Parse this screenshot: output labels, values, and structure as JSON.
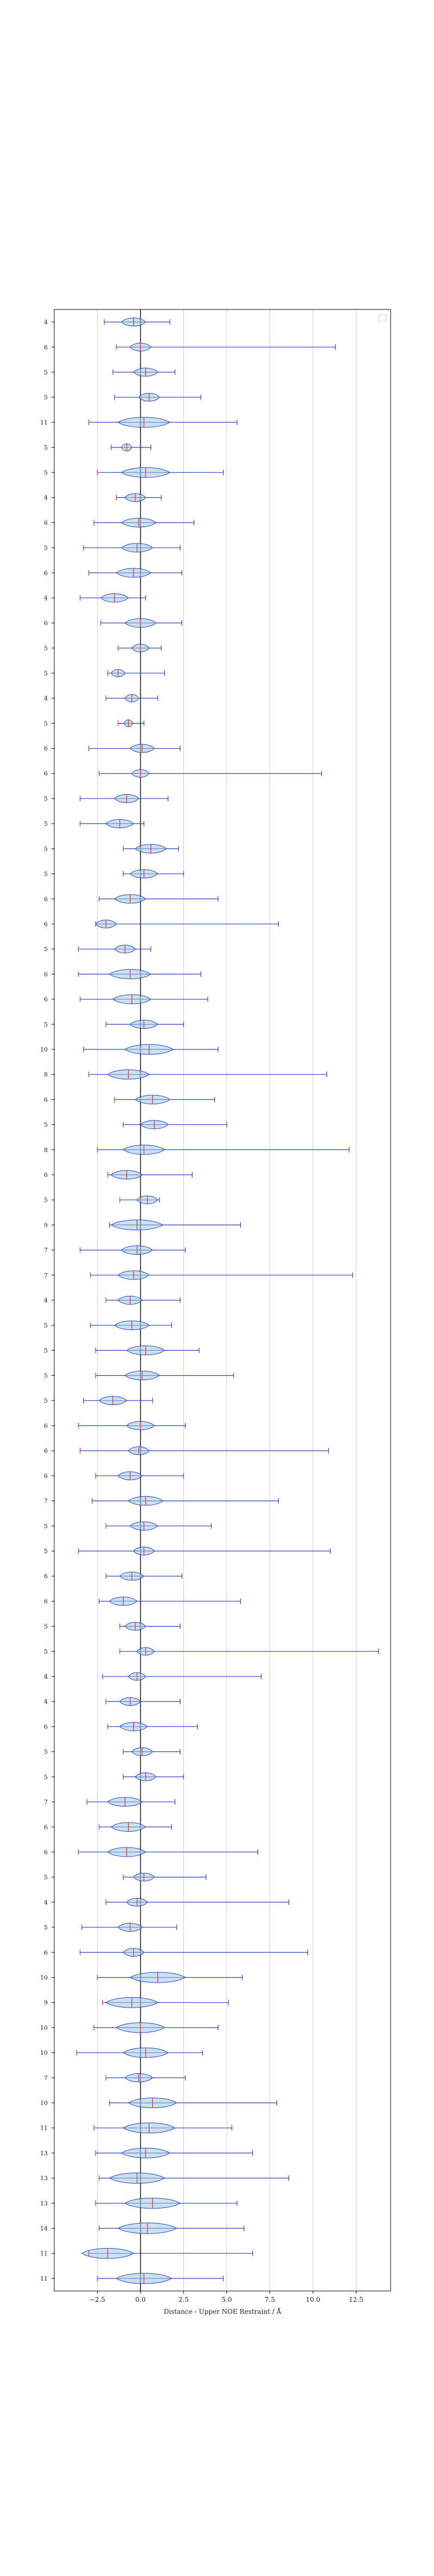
{
  "chart_data": {
    "type": "violin",
    "xlabel": "Distance - Upper NOE Restraint / Å",
    "xlim": [
      -5.0,
      14.5
    ],
    "x_ticks": [
      -2.5,
      0.0,
      2.5,
      5.0,
      7.5,
      10.0,
      12.5
    ],
    "x_tick_labels": [
      "−2.5",
      "0.0",
      "2.5",
      "5.0",
      "7.5",
      "10.0",
      "12.5"
    ],
    "grid": "vertical",
    "legend": "top-right, empty",
    "colors": {
      "body": "#9ecae1",
      "edge": "#2b3fbf",
      "median": "#e34a4a",
      "axis": "#000000",
      "grid": "#cfcfcf"
    },
    "rows": [
      {
        "label": "4",
        "min": -2.1,
        "max": 1.7,
        "median": -0.4,
        "spread": 0.7
      },
      {
        "label": "6",
        "min": -1.4,
        "max": 11.3,
        "median": 0.0,
        "spread": 0.6
      },
      {
        "label": "5",
        "min": -1.6,
        "max": 2.0,
        "median": 0.3,
        "spread": 0.7
      },
      {
        "label": "5",
        "min": -1.5,
        "max": 3.5,
        "median": 0.5,
        "spread": 0.6
      },
      {
        "label": "11",
        "min": -3.0,
        "max": 5.6,
        "median": 0.2,
        "spread": 1.5
      },
      {
        "label": "5",
        "min": -1.7,
        "max": 0.6,
        "median": -0.8,
        "spread": 0.3
      },
      {
        "label": "5",
        "min": -2.5,
        "max": 4.8,
        "median": 0.3,
        "spread": 1.4
      },
      {
        "label": "4",
        "min": -1.4,
        "max": 1.2,
        "median": -0.3,
        "spread": 0.6
      },
      {
        "label": "6",
        "min": -2.7,
        "max": 3.1,
        "median": -0.1,
        "spread": 1.0
      },
      {
        "label": "5",
        "min": -3.3,
        "max": 2.3,
        "median": -0.2,
        "spread": 0.9
      },
      {
        "label": "6",
        "min": -3.0,
        "max": 2.4,
        "median": -0.4,
        "spread": 1.0
      },
      {
        "label": "4",
        "min": -3.5,
        "max": 0.3,
        "median": -1.5,
        "spread": 0.8
      },
      {
        "label": "6",
        "min": -2.3,
        "max": 2.4,
        "median": 0.0,
        "spread": 0.9
      },
      {
        "label": "5",
        "min": -1.3,
        "max": 1.2,
        "median": 0.0,
        "spread": 0.5
      },
      {
        "label": "5",
        "min": -1.9,
        "max": 1.4,
        "median": -1.3,
        "spread": 0.4
      },
      {
        "label": "4",
        "min": -2.0,
        "max": 1.0,
        "median": -0.5,
        "spread": 0.4
      },
      {
        "label": "5",
        "min": -1.3,
        "max": 0.2,
        "median": -0.7,
        "spread": 0.2
      },
      {
        "label": "6",
        "min": -3.0,
        "max": 2.3,
        "median": 0.1,
        "spread": 0.7
      },
      {
        "label": "6",
        "min": -2.4,
        "max": 10.5,
        "median": 0.0,
        "spread": 0.5
      },
      {
        "label": "5",
        "min": -3.5,
        "max": 1.6,
        "median": -0.8,
        "spread": 0.7
      },
      {
        "label": "5",
        "min": -3.5,
        "max": 0.2,
        "median": -1.2,
        "spread": 0.8
      },
      {
        "label": "5",
        "min": -1.0,
        "max": 2.2,
        "median": 0.6,
        "spread": 0.9
      },
      {
        "label": "5",
        "min": -1.0,
        "max": 2.5,
        "median": 0.2,
        "spread": 0.8
      },
      {
        "label": "6",
        "min": -2.4,
        "max": 4.5,
        "median": -0.6,
        "spread": 0.9
      },
      {
        "label": "6",
        "min": -2.6,
        "max": 8.0,
        "median": -2.0,
        "spread": 0.6
      },
      {
        "label": "5",
        "min": -3.6,
        "max": 0.6,
        "median": -0.9,
        "spread": 0.6
      },
      {
        "label": "6",
        "min": -3.6,
        "max": 3.5,
        "median": -0.6,
        "spread": 1.2
      },
      {
        "label": "6",
        "min": -3.5,
        "max": 3.9,
        "median": -0.5,
        "spread": 1.1
      },
      {
        "label": "5",
        "min": -2.0,
        "max": 2.5,
        "median": 0.2,
        "spread": 0.8
      },
      {
        "label": "10",
        "min": -3.3,
        "max": 4.5,
        "median": 0.5,
        "spread": 1.4
      },
      {
        "label": "8",
        "min": -3.0,
        "max": 10.8,
        "median": -0.7,
        "spread": 1.2
      },
      {
        "label": "6",
        "min": -1.5,
        "max": 4.3,
        "median": 0.7,
        "spread": 1.0
      },
      {
        "label": "5",
        "min": -1.0,
        "max": 5.0,
        "median": 0.8,
        "spread": 0.8
      },
      {
        "label": "8",
        "min": -2.5,
        "max": 12.1,
        "median": 0.2,
        "spread": 1.2
      },
      {
        "label": "6",
        "min": -1.9,
        "max": 3.0,
        "median": -0.8,
        "spread": 0.9
      },
      {
        "label": "5",
        "min": -1.2,
        "max": 1.1,
        "median": 0.4,
        "spread": 0.6
      },
      {
        "label": "9",
        "min": -1.8,
        "max": 5.8,
        "median": -0.2,
        "spread": 1.5
      },
      {
        "label": "7",
        "min": -3.5,
        "max": 2.6,
        "median": -0.2,
        "spread": 0.9
      },
      {
        "label": "7",
        "min": -2.9,
        "max": 12.3,
        "median": -0.4,
        "spread": 0.9
      },
      {
        "label": "4",
        "min": -2.0,
        "max": 2.3,
        "median": -0.6,
        "spread": 0.7
      },
      {
        "label": "5",
        "min": -2.9,
        "max": 1.8,
        "median": -0.5,
        "spread": 1.0
      },
      {
        "label": "5",
        "min": -2.6,
        "max": 3.4,
        "median": 0.3,
        "spread": 1.1
      },
      {
        "label": "5",
        "min": -2.6,
        "max": 5.4,
        "median": 0.1,
        "spread": 1.0
      },
      {
        "label": "5",
        "min": -3.3,
        "max": 0.7,
        "median": -1.6,
        "spread": 0.8
      },
      {
        "label": "6",
        "min": -3.6,
        "max": 2.6,
        "median": 0.0,
        "spread": 0.8
      },
      {
        "label": "6",
        "min": -3.5,
        "max": 10.9,
        "median": -0.1,
        "spread": 0.6
      },
      {
        "label": "6",
        "min": -2.6,
        "max": 2.5,
        "median": -0.6,
        "spread": 0.7
      },
      {
        "label": "7",
        "min": -2.8,
        "max": 8.0,
        "median": 0.3,
        "spread": 1.0
      },
      {
        "label": "5",
        "min": -2.0,
        "max": 4.1,
        "median": 0.2,
        "spread": 0.8
      },
      {
        "label": "5",
        "min": -3.6,
        "max": 11.0,
        "median": 0.2,
        "spread": 0.6
      },
      {
        "label": "6",
        "min": -2.0,
        "max": 2.4,
        "median": -0.5,
        "spread": 0.7
      },
      {
        "label": "6",
        "min": -2.4,
        "max": 5.8,
        "median": -1.0,
        "spread": 0.8
      },
      {
        "label": "5",
        "min": -1.2,
        "max": 2.3,
        "median": -0.3,
        "spread": 0.6
      },
      {
        "label": "5",
        "min": -1.2,
        "max": 13.8,
        "median": 0.3,
        "spread": 0.5
      },
      {
        "label": "4",
        "min": -2.2,
        "max": 7.0,
        "median": -0.2,
        "spread": 0.5
      },
      {
        "label": "4",
        "min": -2.0,
        "max": 2.3,
        "median": -0.6,
        "spread": 0.6
      },
      {
        "label": "6",
        "min": -1.9,
        "max": 3.3,
        "median": -0.4,
        "spread": 0.8
      },
      {
        "label": "5",
        "min": -1.0,
        "max": 2.3,
        "median": 0.1,
        "spread": 0.6
      },
      {
        "label": "5",
        "min": -1.0,
        "max": 2.5,
        "median": 0.3,
        "spread": 0.6
      },
      {
        "label": "7",
        "min": -3.1,
        "max": 2.0,
        "median": -0.9,
        "spread": 1.0
      },
      {
        "label": "6",
        "min": -2.4,
        "max": 1.8,
        "median": -0.7,
        "spread": 1.0
      },
      {
        "label": "6",
        "min": -3.6,
        "max": 6.8,
        "median": -0.8,
        "spread": 1.1
      },
      {
        "label": "5",
        "min": -1.0,
        "max": 3.8,
        "median": 0.2,
        "spread": 0.6
      },
      {
        "label": "4",
        "min": -2.0,
        "max": 8.6,
        "median": -0.2,
        "spread": 0.6
      },
      {
        "label": "5",
        "min": -3.4,
        "max": 2.1,
        "median": -0.6,
        "spread": 0.7
      },
      {
        "label": "6",
        "min": -3.5,
        "max": 9.7,
        "median": -0.4,
        "spread": 0.6
      },
      {
        "label": "10",
        "min": -2.5,
        "max": 5.9,
        "median": 1.0,
        "spread": 1.6
      },
      {
        "label": "9",
        "min": -2.2,
        "max": 5.1,
        "median": -0.5,
        "spread": 1.5
      },
      {
        "label": "10",
        "min": -2.7,
        "max": 4.5,
        "median": 0.0,
        "spread": 1.4
      },
      {
        "label": "10",
        "min": -3.7,
        "max": 3.6,
        "median": 0.3,
        "spread": 1.3
      },
      {
        "label": "7",
        "min": -2.0,
        "max": 2.6,
        "median": -0.1,
        "spread": 0.8
      },
      {
        "label": "10",
        "min": -1.8,
        "max": 7.9,
        "median": 0.7,
        "spread": 1.4
      },
      {
        "label": "11",
        "min": -2.7,
        "max": 5.3,
        "median": 0.5,
        "spread": 1.5
      },
      {
        "label": "13",
        "min": -2.6,
        "max": 6.5,
        "median": 0.3,
        "spread": 1.4
      },
      {
        "label": "13",
        "min": -2.4,
        "max": 8.6,
        "median": -0.2,
        "spread": 1.6
      },
      {
        "label": "13",
        "min": -2.6,
        "max": 5.6,
        "median": 0.7,
        "spread": 1.6
      },
      {
        "label": "14",
        "min": -2.4,
        "max": 6.0,
        "median": 0.4,
        "spread": 1.7
      },
      {
        "label": "11",
        "min": -3.0,
        "max": 6.5,
        "median": -1.9,
        "spread": 1.5
      },
      {
        "label": "11",
        "min": -2.5,
        "max": 4.8,
        "median": 0.2,
        "spread": 1.6
      }
    ]
  }
}
